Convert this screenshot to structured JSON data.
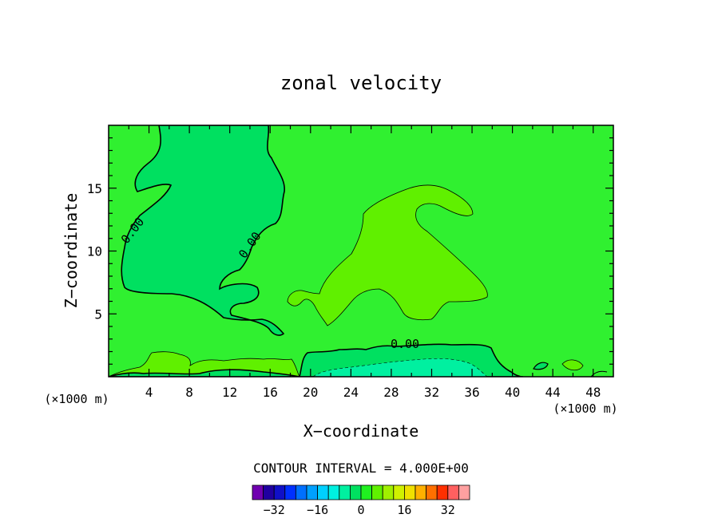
{
  "chart_data": {
    "type": "heatmap",
    "title": "zonal velocity",
    "xlabel": "X−coordinate",
    "ylabel": "Z−coordinate",
    "x_unit_left": "(×1000 m)",
    "x_unit_right": "(×1000 m)",
    "xlim": [
      0,
      50
    ],
    "ylim": [
      0,
      20
    ],
    "x_ticks": [
      4,
      8,
      12,
      16,
      20,
      24,
      28,
      32,
      36,
      40,
      44,
      48
    ],
    "y_ticks": [
      5,
      10,
      15
    ],
    "contour_interval_text": "CONTOUR INTERVAL = 4.000E+00",
    "contour_labels": [
      "0.00",
      "0.00",
      "0.00"
    ],
    "colorbar": {
      "ticks": [
        -32,
        -16,
        0,
        16,
        32
      ],
      "tick_labels": [
        "−32",
        "−16",
        "0",
        "16",
        "32"
      ],
      "levels": [
        -36,
        -32,
        -28,
        -24,
        -20,
        -16,
        -12,
        -8,
        -4,
        0,
        4,
        8,
        12,
        16,
        20,
        24,
        28,
        32,
        36
      ],
      "colors": [
        "#7000b0",
        "#2000a0",
        "#1010c8",
        "#0030ff",
        "#0070ff",
        "#00a0ff",
        "#00d0ff",
        "#00f0e0",
        "#00f0a0",
        "#00e060",
        "#20f020",
        "#60f000",
        "#a0f000",
        "#d0f000",
        "#f0e000",
        "#ffb000",
        "#ff7000",
        "#ff3000",
        "#ff6060",
        "#ffa0a0"
      ]
    },
    "region_colors": {
      "background": "#30f030",
      "negative": "#00e060",
      "positive": "#60f000",
      "strong_negative": "#00f0a0"
    }
  }
}
